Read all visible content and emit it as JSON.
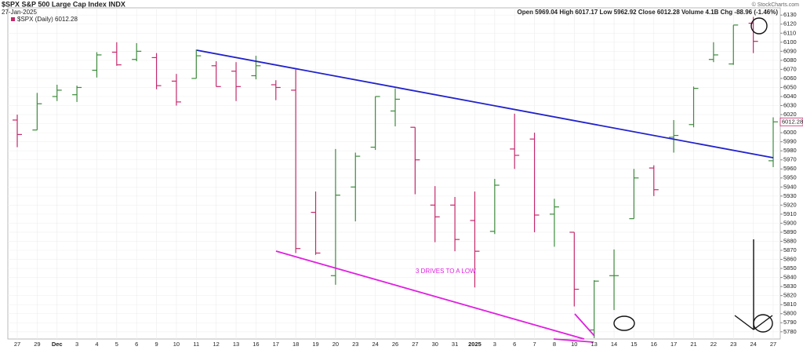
{
  "chart_data": {
    "type": "ohlc",
    "title": "$SPX S&P 500 Large Cap Index INDX",
    "date": "27-Jan-2025",
    "quote": "Open 5969.04 High 6017.17 Low 5962.92 Close 6012.28 Volume 4.1B Chg -88.96 (-1.46%)",
    "credit": "© StockCharts.com",
    "legend": "$SPX (Daily) 6012.28",
    "last_label": "6012.28",
    "annotation": "3 DRIVES TO A LOW",
    "up_color": "#3d8b3d",
    "down_color": "#c4296b",
    "grid": true,
    "categories": [
      "27",
      "29",
      "Dec",
      "3",
      "4",
      "5",
      "6",
      "9",
      "10",
      "11",
      "12",
      "13",
      "16",
      "17",
      "18",
      "19",
      "20",
      "23",
      "24",
      "26",
      "27",
      "30",
      "31",
      "2025",
      "3",
      "6",
      "7",
      "8",
      "10",
      "13",
      "14",
      "15",
      "16",
      "17",
      "21",
      "22",
      "23",
      "24",
      "27"
    ],
    "open": [
      6014,
      6003,
      6040,
      6042,
      6069,
      6089,
      6081,
      6083,
      6057,
      6060,
      6074,
      6068,
      6063,
      6053,
      6047,
      5912,
      5842,
      5940,
      5984,
      6024,
      6006,
      5920,
      5920,
      5903,
      5891,
      5982,
      5993,
      5910,
      5890,
      5782,
      5842,
      5905,
      5961,
      5995,
      6009,
      6081,
      6076,
      6121,
      5969
    ],
    "high": [
      6020,
      6044,
      6053,
      6052,
      6089,
      6100,
      6099,
      6088,
      6065,
      6092,
      6079,
      6078,
      6085,
      6058,
      6070,
      5935,
      5982,
      5978,
      6040,
      6049,
      6006,
      5941,
      5929,
      5935,
      5949,
      6021,
      6000,
      5927,
      5890,
      5837,
      5871,
      5960,
      5964,
      6014,
      6051,
      6100,
      6119,
      6128,
      6017
    ],
    "low": [
      5984,
      6003,
      6035,
      6034,
      6061,
      6074,
      6079,
      6048,
      6030,
      6060,
      6051,
      6035,
      6059,
      6036,
      5867,
      5865,
      5832,
      5902,
      5981,
      6007,
      5932,
      5879,
      5869,
      5829,
      5888,
      5960,
      5890,
      5874,
      5808,
      5773,
      5804,
      5905,
      5930,
      5978,
      6006,
      6078,
      6075,
      6088,
      5962
    ],
    "close": [
      5998,
      6032,
      6047,
      6050,
      6086,
      6075,
      6090,
      6052,
      6034,
      6085,
      6051,
      6051,
      6074,
      6050,
      5872,
      5867,
      5931,
      5974,
      6040,
      6037,
      5970,
      5907,
      5882,
      5869,
      5942,
      5975,
      5909,
      5918,
      5827,
      5836,
      5842,
      5950,
      5937,
      5997,
      6049,
      6086,
      6119,
      6101,
      6012
    ],
    "ylim": [
      5772,
      6138
    ],
    "yticks": [
      5780,
      5790,
      5800,
      5810,
      5820,
      5830,
      5840,
      5850,
      5860,
      5870,
      5880,
      5890,
      5900,
      5910,
      5920,
      5930,
      5940,
      5950,
      5960,
      5970,
      5980,
      5990,
      6000,
      6010,
      6020,
      6030,
      6040,
      6050,
      6060,
      6070,
      6080,
      6090,
      6100,
      6110,
      6120,
      6130
    ]
  }
}
